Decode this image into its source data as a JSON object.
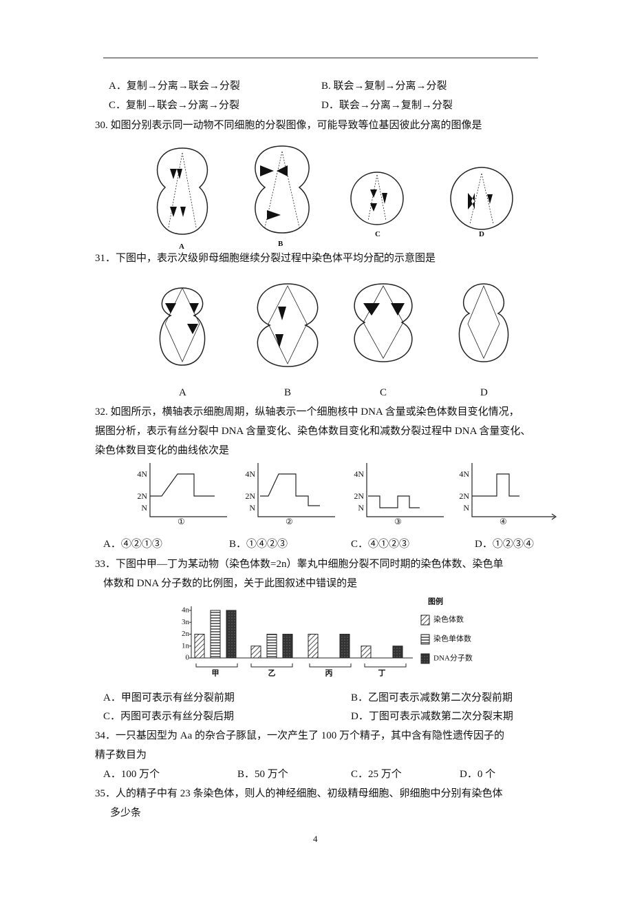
{
  "q29_options": [
    "A．复制→分离→联会→分裂",
    "B. 联会→复制→分离→分裂",
    "C．复制→联会→分离→分裂",
    "D．联会→分离→复制→分裂"
  ],
  "q30": {
    "stem": "30.  如图分别表示同一动物不同细胞的分裂图像，可能导致等位基因彼此分离的图像是",
    "labels": [
      "A",
      "B",
      "C",
      "D"
    ]
  },
  "q31": {
    "stem": "31．下图中，表示次级卵母细胞继续分裂过程中染色体平均分配的示意图是",
    "labels": [
      "A",
      "B",
      "C",
      "D"
    ]
  },
  "q32": {
    "stem": [
      "32.  如图所示，横轴表示细胞周期，纵轴表示一个细胞核中 DNA 含量或染色体数目变化情况，",
      "据图分析，表示有丝分裂中 DNA 含量变化、染色体数目变化和减数分裂过程中 DNA 含量变化、",
      "染色体数目变化的曲线依次是"
    ],
    "graphs": [
      {
        "label": "①",
        "ylabels": [
          "4N",
          "2N",
          "N"
        ]
      },
      {
        "label": "②",
        "ylabels": [
          "4N",
          "2N",
          "N"
        ]
      },
      {
        "label": "③",
        "ylabels": [
          "4N",
          "2N",
          "N"
        ]
      },
      {
        "label": "④",
        "ylabels": [
          "4N",
          "2N",
          "N"
        ]
      }
    ],
    "options": [
      "A．④②①③",
      "B．①④②③",
      "C．④①②③",
      "D．①②③④"
    ]
  },
  "q33": {
    "stem": [
      "33．下图中甲—丁为某动物（染色体数=2n）睾丸中细胞分裂不同时期的染色体数、染色单",
      "体数和 DNA 分子数的比例图，关于此图叙述中错误的是"
    ],
    "chart": {
      "type": "bar",
      "ylim": [
        0,
        4
      ],
      "yticks": [
        0,
        {
          "value": 1,
          "label": "1n"
        },
        {
          "value": 2,
          "label": "2n"
        },
        {
          "value": 3,
          "label": "3n"
        },
        {
          "value": 4,
          "label": "4n"
        }
      ],
      "categories": [
        "甲",
        "乙",
        "丙",
        "丁"
      ],
      "legend_title": "图例",
      "series": [
        {
          "name": "染色体数",
          "values": [
            2,
            1,
            2,
            1
          ]
        },
        {
          "name": "染色单体数",
          "values": [
            4,
            2,
            0,
            0
          ]
        },
        {
          "name": "DNA分子数",
          "values": [
            4,
            2,
            2,
            1
          ]
        }
      ]
    },
    "options": [
      "A．甲图可表示有丝分裂前期",
      "B．乙图可表示减数第二次分裂前期",
      "C．丙图可表示有丝分裂后期",
      "D．丁图可表示减数第二次分裂末期"
    ]
  },
  "q34": {
    "stem": [
      "34．一只基因型为 Aa 的杂合子豚鼠，一次产生了 100 万个精子，其中含有隐性遗传因子的",
      "精子数目为"
    ],
    "options": [
      "A．100 万个",
      "B．50 万个",
      "C．25 万个",
      "D．0 个"
    ]
  },
  "q35": {
    "stem": [
      "35．人的精子中有 23 条染色体，则人的神经细胞、初级精母细胞、卵细胞中分别有染色体",
      "多少条"
    ]
  },
  "page_number": "4"
}
